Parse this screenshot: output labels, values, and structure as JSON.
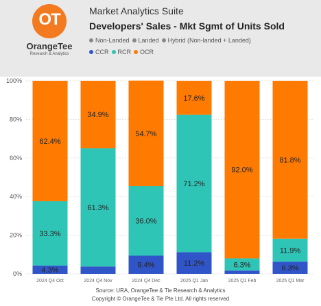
{
  "header": {
    "logo_name": "OrangeTee",
    "logo_tagline": "Research & Analytics",
    "app_title": "Market Analytics Suite"
  },
  "legend": {
    "property_types": [
      {
        "label": "Non-Landed",
        "color": "#888888"
      },
      {
        "label": "Landed",
        "color": "#888888"
      },
      {
        "label": "Hybrid (Non-landed + Landed)",
        "color": "#888888"
      }
    ],
    "segments": [
      {
        "label": "CCR",
        "color": "#2f55c9"
      },
      {
        "label": "RCR",
        "color": "#2ec4b6"
      },
      {
        "label": "OCR",
        "color": "#ff7a00"
      }
    ]
  },
  "chart_data": {
    "type": "bar",
    "stacked": true,
    "title": "Developers' Sales - Mkt Sgmt of Units Sold",
    "categories": [
      "2024 Q4 Oct",
      "2024 Q4 Nov",
      "2024 Q4 Dec",
      "2025 Q1 Jan",
      "2025 Q1 Feb",
      "2025 Q1 Mar"
    ],
    "series": [
      {
        "name": "CCR",
        "color": "#2f55c9",
        "values": [
          4.3,
          3.8,
          9.4,
          11.2,
          1.7,
          6.3
        ],
        "labels": [
          "4.3%",
          "",
          "9.4%",
          "11.2%",
          "",
          "6.3%"
        ]
      },
      {
        "name": "RCR",
        "color": "#2ec4b6",
        "values": [
          33.3,
          61.3,
          36.0,
          71.2,
          6.3,
          11.9
        ],
        "labels": [
          "33.3%",
          "61.3%",
          "36.0%",
          "71.2%",
          "6.3%",
          "11.9%"
        ]
      },
      {
        "name": "OCR",
        "color": "#ff7a00",
        "values": [
          62.4,
          34.9,
          54.7,
          17.6,
          92.0,
          81.8
        ],
        "labels": [
          "62.4%",
          "34.9%",
          "54.7%",
          "17.6%",
          "92.0%",
          "81.8%"
        ]
      }
    ],
    "ylim": [
      0,
      100
    ],
    "yticks": [
      "0%",
      "20%",
      "40%",
      "60%",
      "80%",
      "100%"
    ],
    "grid": true,
    "legend": "top"
  },
  "footer": {
    "source": "Source: URA, OrangeTee & Tie Research & Analytics",
    "copyright": "Copyright © OrangeTee & Tie Pte Ltd. All rights reserved"
  }
}
